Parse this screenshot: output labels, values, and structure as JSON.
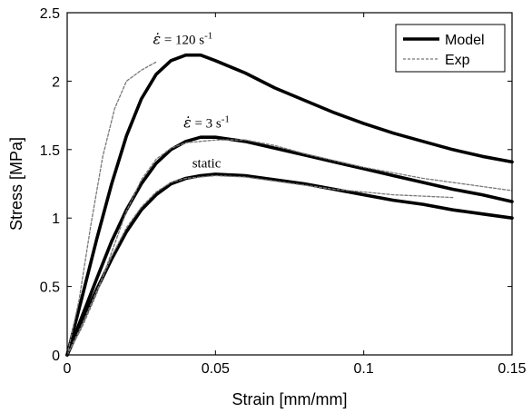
{
  "chart_data": {
    "type": "line",
    "xlabel": "Strain [mm/mm]",
    "ylabel": "Stress [MPa]",
    "xlim": [
      0,
      0.15
    ],
    "ylim": [
      0,
      2.5
    ],
    "xticks": [
      0,
      0.05,
      0.1,
      0.15
    ],
    "xtick_labels": [
      "0",
      "0.05",
      "0.1",
      "0.15"
    ],
    "yticks": [
      0,
      0.5,
      1,
      1.5,
      2,
      2.5
    ],
    "ytick_labels": [
      "0",
      "0.5",
      "1",
      "1.5",
      "2",
      "2.5"
    ],
    "grid": false,
    "legend": {
      "placement": "top-right",
      "entries": [
        {
          "label": "Model",
          "style": "solid"
        },
        {
          "label": "Exp",
          "style": "dotted"
        }
      ]
    },
    "annotations": [
      {
        "symbol": "ε̇",
        "text": " = 120 s",
        "sup": "-1",
        "at": [
          0.039,
          2.27
        ]
      },
      {
        "symbol": "ε̇",
        "text": " = 3 s",
        "sup": "-1",
        "at": [
          0.047,
          1.66
        ]
      },
      {
        "symbol": "",
        "text": "static",
        "sup": "",
        "at": [
          0.047,
          1.37
        ]
      }
    ],
    "series": [
      {
        "style": "solid",
        "points": [
          [
            0,
            0
          ],
          [
            0.005,
            0.42
          ],
          [
            0.01,
            0.85
          ],
          [
            0.015,
            1.25
          ],
          [
            0.02,
            1.6
          ],
          [
            0.025,
            1.87
          ],
          [
            0.03,
            2.05
          ],
          [
            0.035,
            2.15
          ],
          [
            0.04,
            2.19
          ],
          [
            0.045,
            2.19
          ],
          [
            0.05,
            2.15
          ],
          [
            0.06,
            2.06
          ],
          [
            0.07,
            1.95
          ],
          [
            0.08,
            1.86
          ],
          [
            0.09,
            1.77
          ],
          [
            0.1,
            1.69
          ],
          [
            0.11,
            1.62
          ],
          [
            0.12,
            1.56
          ],
          [
            0.13,
            1.5
          ],
          [
            0.14,
            1.45
          ],
          [
            0.15,
            1.41
          ]
        ]
      },
      {
        "style": "solid",
        "points": [
          [
            0,
            0
          ],
          [
            0.005,
            0.28
          ],
          [
            0.01,
            0.56
          ],
          [
            0.015,
            0.83
          ],
          [
            0.02,
            1.06
          ],
          [
            0.025,
            1.25
          ],
          [
            0.03,
            1.4
          ],
          [
            0.035,
            1.5
          ],
          [
            0.04,
            1.56
          ],
          [
            0.045,
            1.59
          ],
          [
            0.05,
            1.59
          ],
          [
            0.06,
            1.56
          ],
          [
            0.07,
            1.51
          ],
          [
            0.08,
            1.46
          ],
          [
            0.09,
            1.41
          ],
          [
            0.1,
            1.36
          ],
          [
            0.11,
            1.31
          ],
          [
            0.12,
            1.26
          ],
          [
            0.13,
            1.21
          ],
          [
            0.14,
            1.17
          ],
          [
            0.15,
            1.12
          ]
        ]
      },
      {
        "style": "solid",
        "points": [
          [
            0,
            0
          ],
          [
            0.005,
            0.24
          ],
          [
            0.01,
            0.48
          ],
          [
            0.015,
            0.7
          ],
          [
            0.02,
            0.9
          ],
          [
            0.025,
            1.06
          ],
          [
            0.03,
            1.17
          ],
          [
            0.035,
            1.25
          ],
          [
            0.04,
            1.29
          ],
          [
            0.045,
            1.31
          ],
          [
            0.05,
            1.32
          ],
          [
            0.06,
            1.31
          ],
          [
            0.07,
            1.28
          ],
          [
            0.08,
            1.25
          ],
          [
            0.09,
            1.21
          ],
          [
            0.1,
            1.17
          ],
          [
            0.11,
            1.13
          ],
          [
            0.12,
            1.1
          ],
          [
            0.13,
            1.06
          ],
          [
            0.14,
            1.03
          ],
          [
            0.15,
            1.0
          ]
        ]
      },
      {
        "style": "dotted",
        "points": [
          [
            0,
            0
          ],
          [
            0.004,
            0.4
          ],
          [
            0.008,
            0.95
          ],
          [
            0.012,
            1.45
          ],
          [
            0.016,
            1.8
          ],
          [
            0.02,
            2.0
          ],
          [
            0.025,
            2.08
          ],
          [
            0.03,
            2.14
          ]
        ]
      },
      {
        "style": "dotted",
        "points": [
          [
            0,
            0
          ],
          [
            0.005,
            0.2
          ],
          [
            0.01,
            0.45
          ],
          [
            0.015,
            0.75
          ],
          [
            0.02,
            1.05
          ],
          [
            0.025,
            1.28
          ],
          [
            0.03,
            1.43
          ],
          [
            0.035,
            1.51
          ],
          [
            0.04,
            1.55
          ],
          [
            0.05,
            1.57
          ],
          [
            0.06,
            1.57
          ],
          [
            0.07,
            1.53
          ],
          [
            0.08,
            1.47
          ],
          [
            0.09,
            1.42
          ],
          [
            0.1,
            1.37
          ],
          [
            0.11,
            1.33
          ],
          [
            0.12,
            1.29
          ],
          [
            0.13,
            1.26
          ],
          [
            0.14,
            1.23
          ],
          [
            0.15,
            1.2
          ]
        ]
      },
      {
        "style": "dotted",
        "points": [
          [
            0,
            0
          ],
          [
            0.005,
            0.22
          ],
          [
            0.01,
            0.47
          ],
          [
            0.015,
            0.72
          ],
          [
            0.02,
            0.93
          ],
          [
            0.025,
            1.08
          ],
          [
            0.03,
            1.19
          ],
          [
            0.035,
            1.26
          ],
          [
            0.04,
            1.29
          ],
          [
            0.05,
            1.31
          ],
          [
            0.06,
            1.3
          ],
          [
            0.07,
            1.27
          ],
          [
            0.08,
            1.24
          ],
          [
            0.09,
            1.21
          ],
          [
            0.1,
            1.19
          ],
          [
            0.11,
            1.17
          ],
          [
            0.12,
            1.16
          ],
          [
            0.13,
            1.15
          ]
        ]
      }
    ]
  }
}
